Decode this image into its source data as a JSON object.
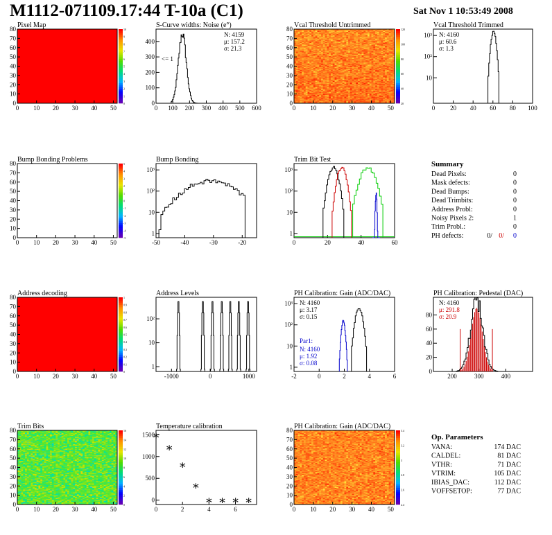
{
  "header": {
    "title": "M1112-071109.17:44 T-10a (C1)",
    "date": "Sat Nov  1 10:53:49 2008"
  },
  "colors": {
    "black": "#000000",
    "red": "#cc0000",
    "green": "#00cc00",
    "blue": "#0000cc",
    "map_red": "#ff0000"
  },
  "chart_data": [
    {
      "id": "pixel-map",
      "type": "heatmap",
      "title": "Pixel Map",
      "xticks": [
        "0",
        "10",
        "20",
        "30",
        "40",
        "50"
      ],
      "yticks": [
        "0",
        "10",
        "20",
        "30",
        "40",
        "50",
        "60",
        "70",
        "80"
      ],
      "xlim": [
        0,
        52
      ],
      "ylim": [
        0,
        80
      ],
      "fill": "uniform",
      "z_ticks": [
        "0",
        "1",
        "2",
        "3",
        "4",
        "5",
        "6",
        "7",
        "8",
        "9",
        "10"
      ]
    },
    {
      "id": "scurve-widths",
      "type": "histogram",
      "title": "S-Curve widths: Noise (e°)",
      "xticks": [
        "0",
        "100",
        "200",
        "300",
        "400",
        "500",
        "600"
      ],
      "yticks": [
        "0",
        "100",
        "200",
        "300",
        "400"
      ],
      "xlim": [
        0,
        600
      ],
      "ylim": [
        0,
        480
      ],
      "stats": [
        "N: 4159",
        "μ: 157.2",
        "σ: 21.3"
      ],
      "annotation": "<= 1",
      "peak": {
        "mean": 157.2,
        "sigma": 21.3,
        "max": 450
      }
    },
    {
      "id": "vcal-untrimmed",
      "type": "heatmap",
      "title": "Vcal Threshold Untrimmed",
      "xticks": [
        "0",
        "10",
        "20",
        "30",
        "40",
        "50"
      ],
      "yticks": [
        "0",
        "10",
        "20",
        "30",
        "40",
        "50",
        "60",
        "70",
        "80"
      ],
      "xlim": [
        0,
        52
      ],
      "ylim": [
        0,
        80
      ],
      "fill": "noise-warm",
      "z_ticks": [
        "20",
        "40",
        "60",
        "80",
        "100",
        "120"
      ]
    },
    {
      "id": "vcal-trimmed",
      "type": "histogram",
      "title": "Vcal Threshold Trimmed",
      "xticks": [
        "0",
        "20",
        "40",
        "60",
        "80",
        "100"
      ],
      "yticks": [
        "10",
        "10²",
        "10³"
      ],
      "xlim": [
        0,
        100
      ],
      "log": true,
      "stats": [
        "N: 4160",
        "μ: 60.6",
        "σ:  1.3"
      ],
      "peak": {
        "mean": 60.6,
        "sigma": 1.3,
        "max": 1500
      }
    },
    {
      "id": "bump-problems",
      "type": "heatmap",
      "title": "Bump Bonding Problems",
      "xticks": [
        "0",
        "10",
        "20",
        "30",
        "40",
        "50"
      ],
      "yticks": [
        "0",
        "10",
        "20",
        "30",
        "40",
        "50",
        "60",
        "70",
        "80"
      ],
      "xlim": [
        0,
        52
      ],
      "ylim": [
        0,
        80
      ],
      "fill": "empty",
      "z_ticks": [
        "-5",
        "-4",
        "-3",
        "-2",
        "-1",
        "0",
        "1",
        "2",
        "3",
        "4",
        "5"
      ]
    },
    {
      "id": "bump-bonding",
      "type": "histogram",
      "title": "Bump Bonding",
      "xticks": [
        "-50",
        "-40",
        "-30",
        "-20"
      ],
      "yticks": [
        "1",
        "10",
        "10²",
        "10³"
      ],
      "xlim": [
        -50,
        -15
      ],
      "log": true
    },
    {
      "id": "trim-bit-test",
      "type": "histogram",
      "title": "Trim Bit Test",
      "xticks": [
        "0",
        "20",
        "40",
        "60"
      ],
      "yticks": [
        "1",
        "10",
        "10²",
        "10³"
      ],
      "xlim": [
        0,
        60
      ],
      "log": true,
      "series": [
        {
          "color": "black",
          "mean": 23.5,
          "sigma": 1.3
        },
        {
          "color": "red",
          "mean": 28.5,
          "sigma": 1.2
        },
        {
          "color": "green",
          "mean": 44,
          "sigma": 2.0
        },
        {
          "color": "blue",
          "mean": 49,
          "sigma": 0.3
        }
      ]
    },
    {
      "id": "address-decoding",
      "type": "heatmap",
      "title": "Address decoding",
      "xticks": [
        "0",
        "10",
        "20",
        "30",
        "40",
        "50"
      ],
      "yticks": [
        "0",
        "10",
        "20",
        "30",
        "40",
        "50",
        "60",
        "70",
        "80"
      ],
      "xlim": [
        0,
        52
      ],
      "ylim": [
        0,
        80
      ],
      "fill": "uniform",
      "z_ticks": [
        "0",
        "0.1",
        "0.2",
        "0.3",
        "0.4",
        "0.5",
        "0.6",
        "0.7",
        "0.8",
        "0.9",
        "1"
      ]
    },
    {
      "id": "address-levels",
      "type": "histogram",
      "title": "Address Levels",
      "xticks": [
        "-1000",
        "0",
        "1000"
      ],
      "yticks": [
        "1",
        "10",
        "10²"
      ],
      "xlim": [
        -1400,
        1200
      ],
      "log": true,
      "levels": [
        -820,
        -190,
        60,
        300,
        520,
        740,
        980
      ]
    },
    {
      "id": "ph-gain",
      "type": "histogram",
      "title": "PH Calibration: Gain (ADC/DAC)",
      "xticks": [
        "-2",
        "0",
        "2",
        "4",
        "6"
      ],
      "yticks": [
        "1",
        "10",
        "10²",
        "10³"
      ],
      "xlim": [
        -2,
        6
      ],
      "log": true,
      "stats": [
        "N: 4160",
        "μ: 3.17",
        "σ: 0.15"
      ],
      "par1_label": "Par1:",
      "par1_stats": [
        "N: 4160",
        "μ: 1.92",
        "σ: 0.08"
      ],
      "series": [
        {
          "color": "black",
          "mean": 3.17,
          "sigma": 0.15
        },
        {
          "color": "blue",
          "mean": 1.92,
          "sigma": 0.08
        }
      ]
    },
    {
      "id": "ph-pedestal",
      "type": "histogram",
      "title": "PH Calibration: Pedestal (DAC)",
      "xticks": [
        "200",
        "300",
        "400"
      ],
      "yticks": [
        "0",
        "20",
        "40",
        "60",
        "80"
      ],
      "xlim": [
        130,
        500
      ],
      "ylim": [
        0,
        105
      ],
      "stats": [
        "N: 4160",
        "μ: 291.8",
        "σ: 20.9"
      ],
      "peak": {
        "mean": 291.8,
        "sigma": 20.9,
        "max": 90
      },
      "cut_lines": [
        230,
        350
      ]
    },
    {
      "id": "trim-bits",
      "type": "heatmap",
      "title": "Trim Bits",
      "xticks": [
        "0",
        "10",
        "20",
        "30",
        "40",
        "50"
      ],
      "yticks": [
        "0",
        "10",
        "20",
        "30",
        "40",
        "50",
        "60",
        "70",
        "80"
      ],
      "xlim": [
        0,
        52
      ],
      "ylim": [
        0,
        80
      ],
      "fill": "noise-green",
      "z_ticks": [
        "0",
        "2",
        "4",
        "6",
        "8",
        "10",
        "12",
        "14",
        "16"
      ]
    },
    {
      "id": "temperature-calibration",
      "type": "scatter",
      "title": "Temperature calibration",
      "xticks": [
        "0",
        "2",
        "4",
        "6"
      ],
      "yticks": [
        "0",
        "500",
        "1000",
        "1500"
      ],
      "xlim": [
        0,
        7.6
      ],
      "ylim": [
        -100,
        1600
      ],
      "x": [
        0,
        1,
        2,
        3,
        4,
        5,
        6,
        7
      ],
      "y": [
        1490,
        1210,
        810,
        340,
        0,
        0,
        0,
        0
      ]
    },
    {
      "id": "ph-gain-map",
      "type": "heatmap",
      "title": "PH Calibration: Gain (ADC/DAC)",
      "xticks": [
        "0",
        "10",
        "20",
        "30",
        "40",
        "50"
      ],
      "yticks": [
        "0",
        "10",
        "20",
        "30",
        "40",
        "50",
        "60",
        "70",
        "80"
      ],
      "xlim": [
        0,
        52
      ],
      "ylim": [
        0,
        80
      ],
      "fill": "noise-warm2",
      "z_ticks": [
        "2.4",
        "2.6",
        "2.8",
        "3",
        "3.2",
        "3.4"
      ]
    }
  ],
  "summary": {
    "title": "Summary",
    "rows": [
      {
        "label": "Dead Pixels:",
        "value": "0"
      },
      {
        "label": "Mask defects:",
        "value": "0"
      },
      {
        "label": "Dead Bumps:",
        "value": "0"
      },
      {
        "label": "Dead Trimbits:",
        "value": "0"
      },
      {
        "label": "Address Probl:",
        "value": "0"
      },
      {
        "label": "Noisy Pixels 2:",
        "value": "1"
      },
      {
        "label": "Trim Probl.:",
        "value": "0"
      }
    ],
    "ph_defects": {
      "label": "PH defects:",
      "values": [
        "0/",
        "0/",
        "0"
      ]
    }
  },
  "op_parameters": {
    "title": "Op. Parameters",
    "rows": [
      {
        "label": "VANA:",
        "value": "174 DAC"
      },
      {
        "label": "CALDEL:",
        "value": "81 DAC"
      },
      {
        "label": "VTHR:",
        "value": "71 DAC"
      },
      {
        "label": "VTRIM:",
        "value": "105 DAC"
      },
      {
        "label": "IBIAS_DAC:",
        "value": "112 DAC"
      },
      {
        "label": "VOFFSETOP:",
        "value": "77 DAC"
      }
    ]
  }
}
